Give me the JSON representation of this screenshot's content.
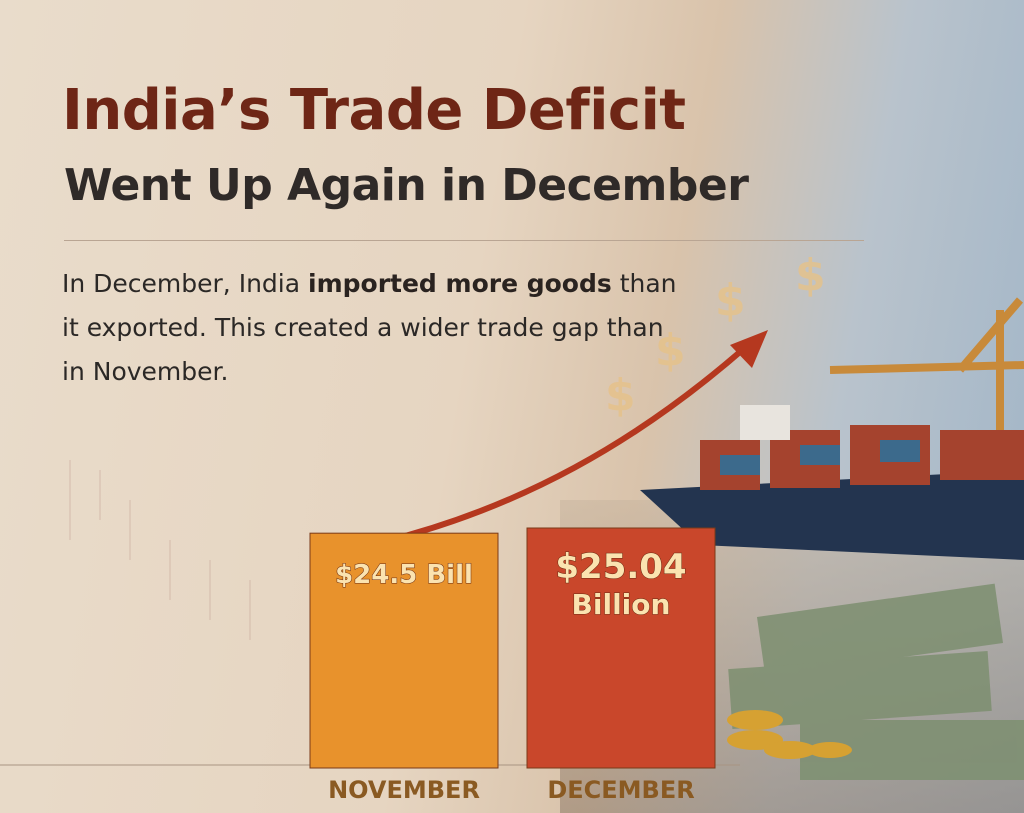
{
  "chart_data": {
    "type": "bar",
    "title": "India’s Trade Deficit",
    "subtitle": "Went Up Again in December",
    "description": [
      "In December, India ",
      "imported more goods",
      " than it exported. This created a wider trade gap than in November."
    ],
    "categories": [
      "NOVEMBER",
      "DECEMBER"
    ],
    "values": [
      24.5,
      25.04
    ],
    "value_labels": [
      "$24.5 Bill",
      "$25.04 Billion"
    ],
    "colors": [
      "#e8922c",
      "#c9472b"
    ]
  }
}
